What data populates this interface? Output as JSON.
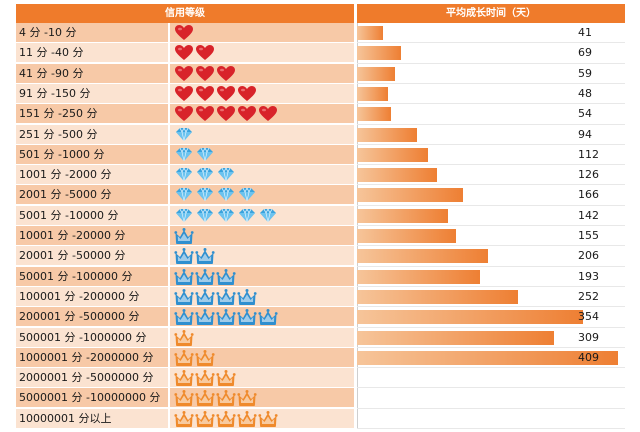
{
  "chart_data": {
    "type": "bar",
    "orientation": "horizontal",
    "header": {
      "level_col": "信用等级",
      "time_col": "平均成长时间（天）"
    },
    "categories": [
      "4 分 -10 分",
      "11 分 -40 分",
      "41 分 -90 分",
      "91 分 -150 分",
      "151 分 -250 分",
      "251 分 -500 分",
      "501 分 -1000 分",
      "1001 分 -2000 分",
      "2001 分 -5000 分",
      "5001 分 -10000 分",
      "10001 分 -20000 分",
      "20001 分 -50000 分",
      "50001 分 -100000 分",
      "100001 分 -200000 分",
      "200001 分 -500000 分",
      "500001 分 -1000000 分",
      "1000001 分 -2000000 分",
      "2000001 分 -5000000 分",
      "5000001 分 -10000000 分",
      "10000001 分以上"
    ],
    "values": [
      41,
      69,
      59,
      48,
      54,
      94,
      112,
      126,
      166,
      142,
      155,
      206,
      193,
      252,
      354,
      309,
      409,
      null,
      null,
      null
    ],
    "value_labels": [
      "41",
      "69",
      "59",
      "48",
      "54",
      "94",
      "112",
      "126",
      "166",
      "142",
      "155",
      "206",
      "193",
      "252",
      "354",
      "309",
      "409",
      "",
      "",
      ""
    ],
    "xlim": [
      0,
      420
    ],
    "grid": false,
    "legend": "none",
    "levels": [
      {
        "icon": "heart-icon",
        "count": 1
      },
      {
        "icon": "heart-icon",
        "count": 2
      },
      {
        "icon": "heart-icon",
        "count": 3
      },
      {
        "icon": "heart-icon",
        "count": 4
      },
      {
        "icon": "heart-icon",
        "count": 5
      },
      {
        "icon": "diamond-icon",
        "count": 1
      },
      {
        "icon": "diamond-icon",
        "count": 2
      },
      {
        "icon": "diamond-icon",
        "count": 3
      },
      {
        "icon": "diamond-icon",
        "count": 4
      },
      {
        "icon": "diamond-icon",
        "count": 5
      },
      {
        "icon": "blue-crown-icon",
        "count": 1
      },
      {
        "icon": "blue-crown-icon",
        "count": 2
      },
      {
        "icon": "blue-crown-icon",
        "count": 3
      },
      {
        "icon": "blue-crown-icon",
        "count": 4
      },
      {
        "icon": "blue-crown-icon",
        "count": 5
      },
      {
        "icon": "gold-crown-icon",
        "count": 1
      },
      {
        "icon": "gold-crown-icon",
        "count": 2
      },
      {
        "icon": "gold-crown-icon",
        "count": 3
      },
      {
        "icon": "gold-crown-icon",
        "count": 4
      },
      {
        "icon": "gold-crown-icon",
        "count": 5
      }
    ]
  },
  "colors": {
    "header": "#ef7b2b",
    "row_dark": "#f7c9a7",
    "row_light": "#fbe3d1",
    "heart": "#d8232a",
    "diamond": "#3aa3dd",
    "blue_crown": "#2f8fcf",
    "gold_crown": "#ef8a2c"
  }
}
